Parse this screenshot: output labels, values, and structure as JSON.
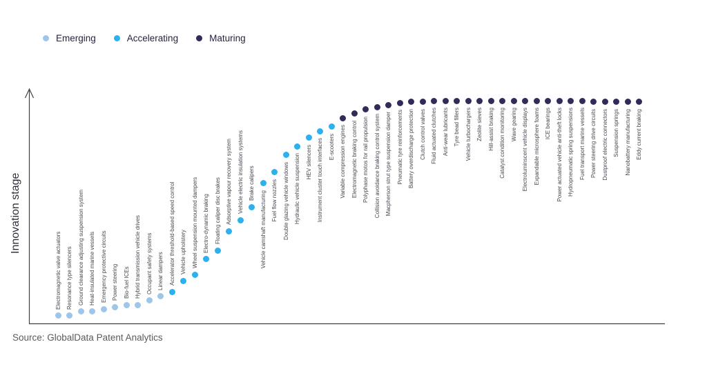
{
  "legend": {
    "items": [
      {
        "label": "Emerging",
        "color": "#9dc6e8"
      },
      {
        "label": "Accelerating",
        "color": "#2cb0ee"
      },
      {
        "label": "Maturing",
        "color": "#312b5a"
      }
    ]
  },
  "source": "Source: GlobalData Patent Analytics",
  "chart_data": {
    "type": "scatter",
    "title": "",
    "xlabel": "",
    "ylabel": "Innovation stage",
    "grid": false,
    "legend_position": "top-left",
    "y_axis": {
      "numeric": false,
      "range_note": "qualitative innovation S-curve, score 0-100 estimated from dot heights"
    },
    "stage_colors": {
      "Emerging": "#9dc6e8",
      "Accelerating": "#2cb0ee",
      "Maturing": "#312b5a"
    },
    "points": [
      {
        "label": "Electromagnetic valve actuators",
        "stage": "Emerging",
        "score": 1
      },
      {
        "label": "Resonance type silencers",
        "stage": "Emerging",
        "score": 1
      },
      {
        "label": "Ground clearance adjusting suspension system",
        "stage": "Emerging",
        "score": 3
      },
      {
        "label": "Heat-insulated marine vessels",
        "stage": "Emerging",
        "score": 3
      },
      {
        "label": "Emergency protective circuits",
        "stage": "Emerging",
        "score": 4
      },
      {
        "label": "Power steering",
        "stage": "Emerging",
        "score": 5
      },
      {
        "label": "Bio-fuel ICEs",
        "stage": "Emerging",
        "score": 6
      },
      {
        "label": "Hybrid transmission vehicle drives",
        "stage": "Emerging",
        "score": 6
      },
      {
        "label": "Occupant safety systems",
        "stage": "Emerging",
        "score": 8
      },
      {
        "label": "Linear dampers",
        "stage": "Emerging",
        "score": 10
      },
      {
        "label": "Accelerator threshold-based speed control",
        "stage": "Accelerating",
        "score": 12
      },
      {
        "label": "Vehicle upholstery",
        "stage": "Accelerating",
        "score": 17
      },
      {
        "label": "Wheel suspension mounted dampers",
        "stage": "Accelerating",
        "score": 20
      },
      {
        "label": "Electro-dynamic braking",
        "stage": "Accelerating",
        "score": 27
      },
      {
        "label": "Floating caliper disc brakes",
        "stage": "Accelerating",
        "score": 31
      },
      {
        "label": "Adsorptive vapour recovery system",
        "stage": "Accelerating",
        "score": 40
      },
      {
        "label": "Vehicle electric insulation systems",
        "stage": "Accelerating",
        "score": 45
      },
      {
        "label": "Brake calipers",
        "stage": "Accelerating",
        "score": 51
      },
      {
        "label": "Vehicle camshaft manufacturing",
        "stage": "Accelerating",
        "score": 62
      },
      {
        "label": "Fuel flow nozzles",
        "stage": "Accelerating",
        "score": 67
      },
      {
        "label": "Double glazing vehicle windows",
        "stage": "Accelerating",
        "score": 75
      },
      {
        "label": "Hydraulic vehicle suspension",
        "stage": "Accelerating",
        "score": 79
      },
      {
        "label": "HEV silencers",
        "stage": "Accelerating",
        "score": 83
      },
      {
        "label": "Instrument cluster touch interfaces",
        "stage": "Accelerating",
        "score": 86
      },
      {
        "label": "E-scooters",
        "stage": "Accelerating",
        "score": 88
      },
      {
        "label": "Variable compression engines",
        "stage": "Maturing",
        "score": 92
      },
      {
        "label": "Electromagnetic braking control",
        "stage": "Maturing",
        "score": 94
      },
      {
        "label": "Polyphase motos for rail propulsion",
        "stage": "Maturing",
        "score": 96
      },
      {
        "label": "Collision avoidance braking control system",
        "stage": "Maturing",
        "score": 97
      },
      {
        "label": "Macpherson strut type suspension damper",
        "stage": "Maturing",
        "score": 98
      },
      {
        "label": "Pneumatic tyre reinforcements",
        "stage": "Maturing",
        "score": 99
      },
      {
        "label": "Battery overdischarge protection",
        "stage": "Maturing",
        "score": 99.5
      },
      {
        "label": "Clutch control valves",
        "stage": "Maturing",
        "score": 99.5
      },
      {
        "label": "Fluid actuated clutches",
        "stage": "Maturing",
        "score": 100
      },
      {
        "label": "Anti-wear lubricants",
        "stage": "Maturing",
        "score": 100
      },
      {
        "label": "Tyre bead fillers",
        "stage": "Maturing",
        "score": 100
      },
      {
        "label": "Vehicle turbochargers",
        "stage": "Maturing",
        "score": 100
      },
      {
        "label": "Zeolite sieves",
        "stage": "Maturing",
        "score": 100
      },
      {
        "label": "Hill-assist braking",
        "stage": "Maturing",
        "score": 100
      },
      {
        "label": "Catalyst condition monitoring",
        "stage": "Maturing",
        "score": 100
      },
      {
        "label": "Wave gearing",
        "stage": "Maturing",
        "score": 100
      },
      {
        "label": "Electroluminscent vehicle displays",
        "stage": "Maturing",
        "score": 100
      },
      {
        "label": "Expandable microsphere foams",
        "stage": "Maturing",
        "score": 100
      },
      {
        "label": "ICE bearings",
        "stage": "Maturing",
        "score": 100
      },
      {
        "label": "Power actuated vehicle anti-theft locks",
        "stage": "Maturing",
        "score": 100
      },
      {
        "label": "Hydropneumatic spring suspensions",
        "stage": "Maturing",
        "score": 100
      },
      {
        "label": "Fuel transport marine vessels",
        "stage": "Maturing",
        "score": 100
      },
      {
        "label": "Power steering drive circuits",
        "stage": "Maturing",
        "score": 99.5
      },
      {
        "label": "Dustproof electric connectors",
        "stage": "Maturing",
        "score": 99.5
      },
      {
        "label": "Suspension springs",
        "stage": "Maturing",
        "score": 99.5
      },
      {
        "label": "Nanobattery manufacturing",
        "stage": "Maturing",
        "score": 99.5
      },
      {
        "label": "Eddy current braking",
        "stage": "Maturing",
        "score": 99.5
      }
    ]
  }
}
